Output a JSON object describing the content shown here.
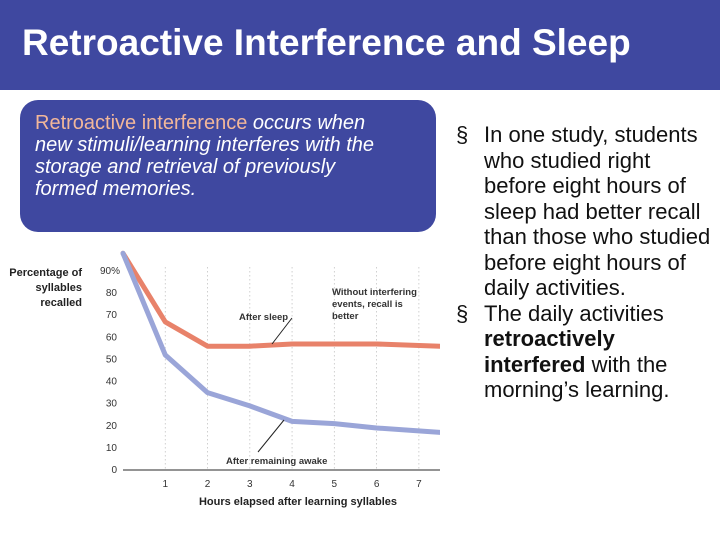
{
  "slide": {
    "title": "Retroactive Interference and Sleep",
    "definition": {
      "term": "Retroactive interference",
      "text": " occurs when new stimuli/learning interferes with the storage and retrieval of previously formed memories."
    },
    "bullets": [
      {
        "text": "In one study, students who studied right before eight hours of sleep had better recall than those who studied before eight hours of daily activities."
      },
      {
        "pre": "The daily activities ",
        "bold": "retroactively interfered",
        "post": " with the morning’s learning."
      }
    ],
    "bullet_symbol": "§"
  },
  "colors": {
    "title_bg": "#3f48a0",
    "definition_term": "#f2b79a",
    "sleep_line": "#e8826a",
    "awake_line": "#9aa5d8",
    "axis": "#555555"
  },
  "chart_data": {
    "type": "line",
    "ylabel": "Percentage of syllables recalled",
    "xlabel": "Hours elapsed after learning syllables",
    "y_ticks": [
      "90%",
      "80",
      "70",
      "60",
      "50",
      "40",
      "30",
      "20",
      "10",
      "0"
    ],
    "x_ticks": [
      "1",
      "2",
      "3",
      "4",
      "5",
      "6",
      "7"
    ],
    "xlim": [
      0,
      7.5
    ],
    "ylim": [
      0,
      90
    ],
    "series": [
      {
        "name": "After sleep",
        "x": [
          0,
          1,
          2,
          3,
          4,
          5,
          6,
          7.5
        ],
        "y": [
          98,
          67,
          56,
          56,
          57,
          57,
          57,
          56
        ]
      },
      {
        "name": "After remaining awake",
        "x": [
          0,
          1,
          2,
          3,
          4,
          5,
          6,
          7.5
        ],
        "y": [
          98,
          52,
          35,
          29,
          22,
          21,
          19,
          17
        ]
      }
    ],
    "annotations": [
      "Without interfering events, recall is better",
      "After sleep",
      "After remaining awake"
    ],
    "grid": true
  }
}
